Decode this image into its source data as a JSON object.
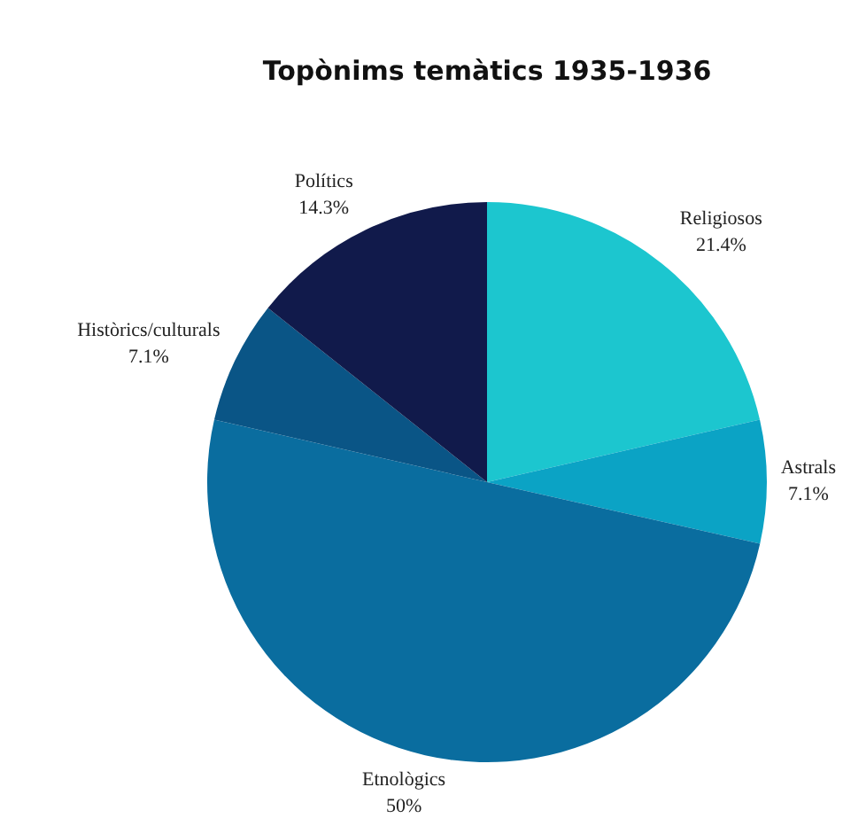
{
  "chart_data": {
    "type": "pie",
    "title": "Topònims temàtics 1935-1936",
    "categories": [
      "Religiosos",
      "Astrals",
      "Etnològics",
      "Històrics/culturals",
      "Polítics"
    ],
    "values": [
      21.4,
      7.1,
      50,
      7.1,
      14.3
    ],
    "value_labels": [
      "21.4%",
      "7.1%",
      "50%",
      "7.1%",
      "14.3%"
    ],
    "colors": [
      "#1cc6cf",
      "#0ba3c5",
      "#0a6d9f",
      "#0a5586",
      "#111a4b"
    ],
    "legend": false
  }
}
